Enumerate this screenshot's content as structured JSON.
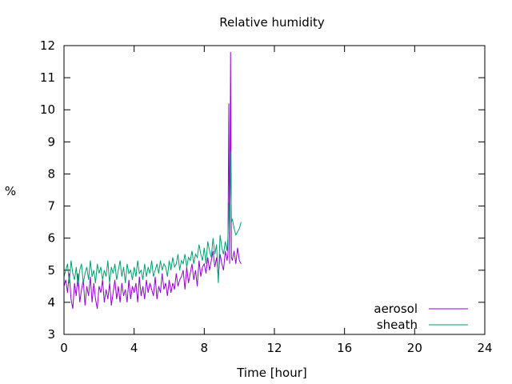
{
  "chart_data": {
    "type": "line",
    "title": "Relative humidity",
    "xlabel": "Time [hour]",
    "ylabel": "%",
    "xlim": [
      0,
      24
    ],
    "ylim": [
      3,
      12
    ],
    "xticks": [
      0,
      4,
      8,
      12,
      16,
      20,
      24
    ],
    "yticks": [
      3,
      4,
      5,
      6,
      7,
      8,
      9,
      10,
      11,
      12
    ],
    "grid": false,
    "legend_position": "bottom-right",
    "series": [
      {
        "name": "aerosol",
        "color": "#9400d3",
        "x": [
          0.0,
          0.1,
          0.2,
          0.3,
          0.4,
          0.5,
          0.6,
          0.7,
          0.8,
          0.9,
          1.0,
          1.1,
          1.2,
          1.3,
          1.4,
          1.5,
          1.6,
          1.7,
          1.8,
          1.9,
          2.0,
          2.1,
          2.2,
          2.3,
          2.4,
          2.5,
          2.6,
          2.7,
          2.8,
          2.9,
          3.0,
          3.1,
          3.2,
          3.3,
          3.4,
          3.5,
          3.6,
          3.7,
          3.8,
          3.9,
          4.0,
          4.1,
          4.2,
          4.3,
          4.4,
          4.5,
          4.6,
          4.7,
          4.8,
          4.9,
          5.0,
          5.1,
          5.2,
          5.3,
          5.4,
          5.5,
          5.6,
          5.7,
          5.8,
          5.9,
          6.0,
          6.1,
          6.2,
          6.3,
          6.4,
          6.5,
          6.6,
          6.7,
          6.8,
          6.9,
          7.0,
          7.1,
          7.2,
          7.3,
          7.4,
          7.5,
          7.6,
          7.7,
          7.8,
          7.9,
          8.0,
          8.1,
          8.2,
          8.3,
          8.4,
          8.5,
          8.6,
          8.7,
          8.8,
          8.9,
          9.0,
          9.1,
          9.2,
          9.3,
          9.35,
          9.4,
          9.45,
          9.5,
          9.55,
          9.6,
          9.7,
          9.8,
          9.9,
          10.0,
          10.1
        ],
        "values": [
          4.5,
          4.7,
          4.3,
          4.9,
          4.1,
          3.8,
          4.6,
          4.2,
          4.9,
          4.0,
          4.4,
          4.7,
          3.9,
          4.5,
          4.2,
          4.8,
          4.0,
          4.6,
          4.1,
          3.8,
          4.5,
          4.3,
          4.7,
          4.0,
          4.4,
          4.1,
          4.6,
          3.9,
          4.3,
          4.7,
          4.1,
          4.5,
          4.0,
          4.6,
          4.2,
          4.4,
          4.0,
          4.7,
          4.1,
          4.5,
          4.3,
          4.6,
          4.0,
          4.8,
          4.2,
          4.5,
          4.1,
          4.7,
          4.3,
          4.6,
          4.4,
          4.2,
          4.8,
          4.1,
          4.5,
          4.3,
          4.9,
          4.4,
          4.6,
          4.2,
          4.7,
          4.3,
          4.6,
          4.4,
          4.9,
          4.5,
          4.7,
          4.8,
          5.0,
          4.4,
          5.1,
          4.6,
          4.9,
          5.2,
          4.7,
          5.0,
          4.5,
          5.3,
          4.8,
          5.1,
          5.2,
          4.9,
          5.4,
          5.0,
          5.3,
          5.6,
          5.1,
          5.4,
          4.8,
          5.5,
          5.2,
          5.0,
          5.6,
          5.3,
          5.5,
          10.2,
          5.2,
          11.8,
          5.4,
          5.3,
          5.6,
          5.2,
          5.7,
          5.3,
          5.2
        ]
      },
      {
        "name": "sheath",
        "color": "#009e73",
        "x": [
          0.0,
          0.1,
          0.2,
          0.3,
          0.4,
          0.5,
          0.6,
          0.7,
          0.8,
          0.9,
          1.0,
          1.1,
          1.2,
          1.3,
          1.4,
          1.5,
          1.6,
          1.7,
          1.8,
          1.9,
          2.0,
          2.1,
          2.2,
          2.3,
          2.4,
          2.5,
          2.6,
          2.7,
          2.8,
          2.9,
          3.0,
          3.1,
          3.2,
          3.3,
          3.4,
          3.5,
          3.6,
          3.7,
          3.8,
          3.9,
          4.0,
          4.1,
          4.2,
          4.3,
          4.4,
          4.5,
          4.6,
          4.7,
          4.8,
          4.9,
          5.0,
          5.1,
          5.2,
          5.3,
          5.4,
          5.5,
          5.6,
          5.7,
          5.8,
          5.9,
          6.0,
          6.1,
          6.2,
          6.3,
          6.4,
          6.5,
          6.6,
          6.7,
          6.8,
          6.9,
          7.0,
          7.1,
          7.2,
          7.3,
          7.4,
          7.5,
          7.6,
          7.7,
          7.8,
          7.9,
          8.0,
          8.1,
          8.2,
          8.3,
          8.4,
          8.5,
          8.6,
          8.7,
          8.8,
          8.9,
          9.0,
          9.1,
          9.2,
          9.3,
          9.35,
          9.4,
          9.45,
          9.5,
          9.55,
          9.6,
          9.7,
          9.8,
          9.9,
          10.0,
          10.1
        ],
        "values": [
          4.8,
          5.0,
          5.2,
          4.6,
          5.3,
          4.9,
          4.7,
          5.1,
          4.5,
          5.0,
          5.2,
          4.6,
          4.9,
          5.1,
          4.7,
          5.3,
          4.8,
          5.0,
          4.6,
          5.2,
          4.9,
          5.1,
          4.7,
          5.0,
          4.8,
          5.3,
          4.6,
          5.1,
          4.9,
          5.2,
          4.7,
          5.0,
          5.3,
          4.8,
          5.1,
          4.6,
          5.2,
          4.9,
          5.0,
          4.7,
          5.1,
          4.8,
          5.3,
          4.9,
          5.0,
          4.7,
          5.2,
          4.8,
          5.1,
          4.9,
          5.3,
          4.8,
          5.0,
          5.2,
          4.9,
          5.3,
          5.0,
          5.2,
          5.1,
          4.8,
          5.3,
          5.0,
          5.4,
          5.1,
          5.2,
          5.5,
          5.0,
          5.3,
          5.2,
          5.5,
          5.1,
          5.4,
          5.3,
          5.6,
          5.2,
          5.5,
          5.4,
          5.8,
          5.5,
          5.3,
          5.7,
          5.2,
          5.9,
          5.6,
          5.4,
          6.0,
          5.5,
          5.8,
          4.6,
          6.1,
          5.7,
          5.5,
          5.9,
          5.6,
          6.0,
          7.1,
          6.2,
          8.7,
          6.5,
          6.6,
          6.3,
          6.1,
          6.2,
          6.3,
          6.5
        ]
      }
    ]
  }
}
